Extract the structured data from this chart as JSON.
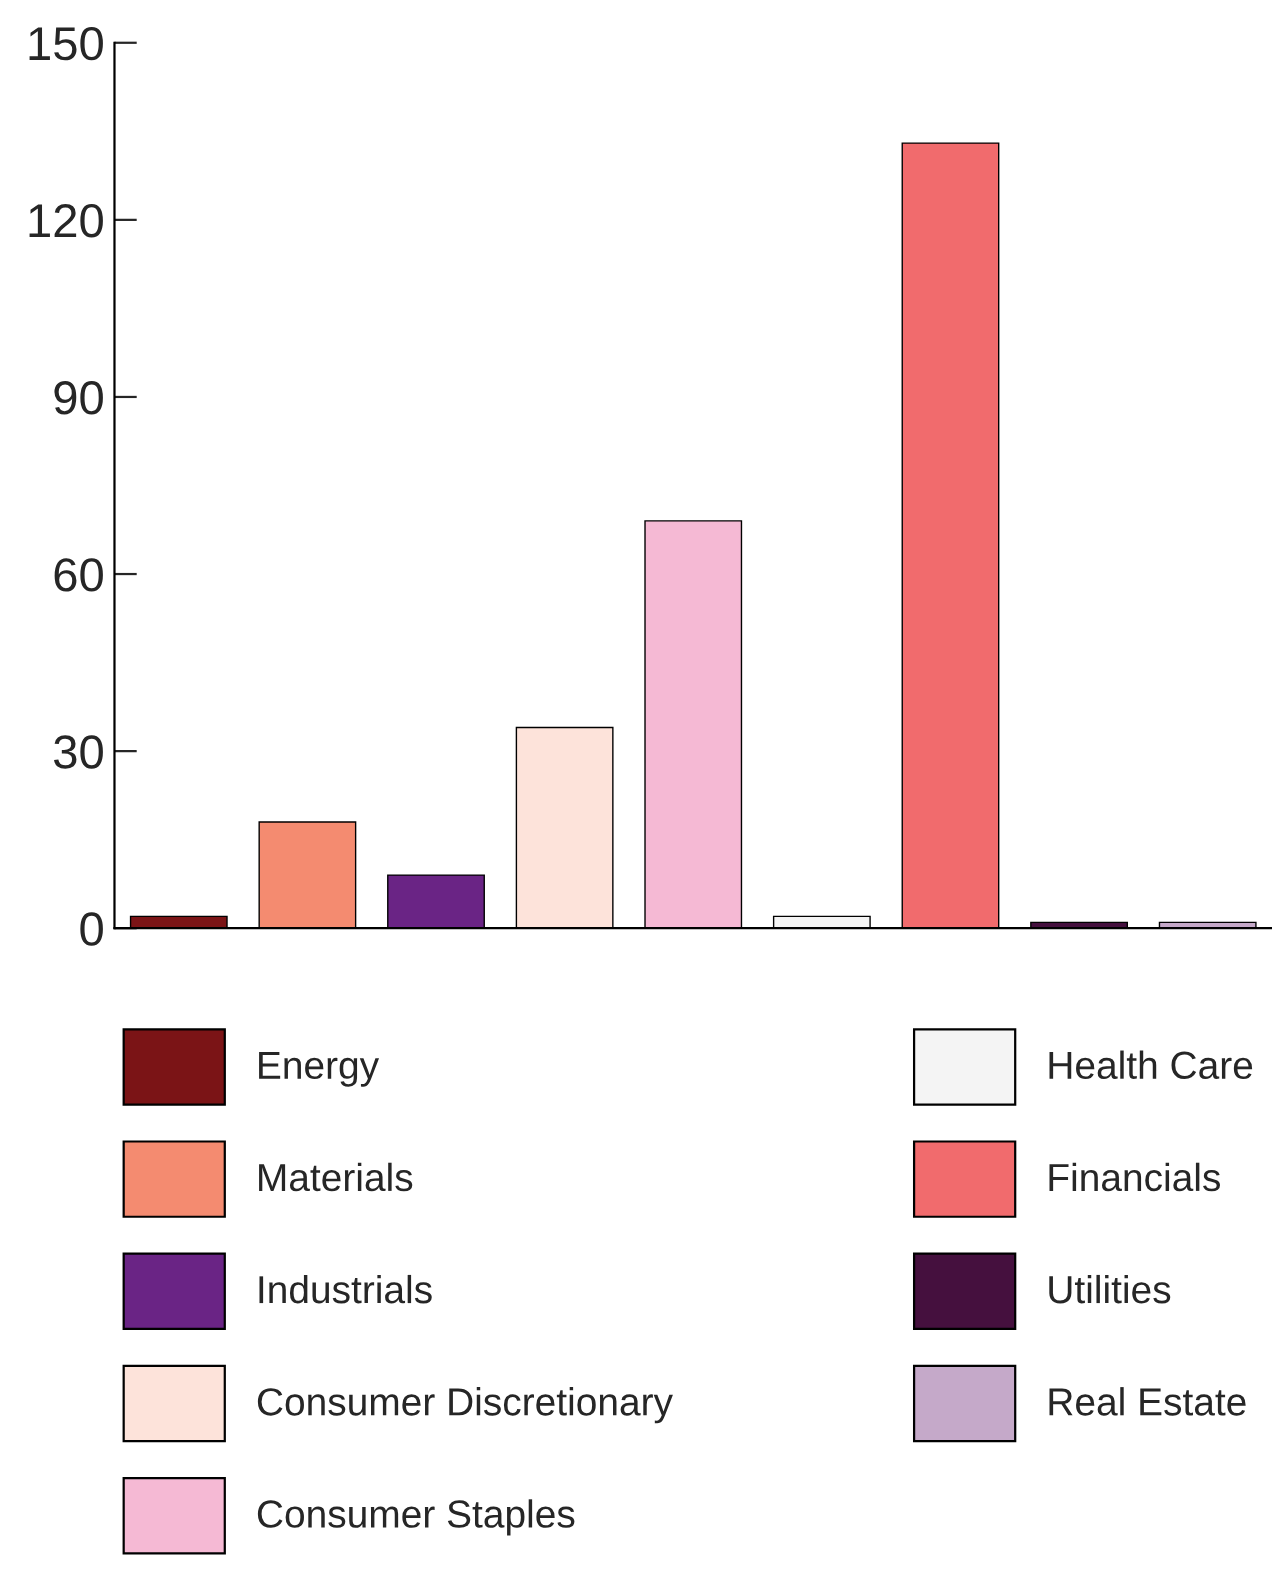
{
  "chart_data": {
    "type": "bar",
    "categories": [
      null,
      null,
      null,
      null,
      null,
      null,
      null,
      null,
      null
    ],
    "series": [
      {
        "name": "Energy",
        "color": "#7b1416",
        "values": [
          2,
          null,
          null,
          null,
          null,
          null,
          null,
          null,
          null
        ]
      },
      {
        "name": "Materials",
        "color": "#f48b70",
        "values": [
          null,
          18,
          null,
          null,
          null,
          null,
          null,
          null,
          null
        ]
      },
      {
        "name": "Industrials",
        "color": "#6a2485",
        "values": [
          null,
          null,
          9,
          null,
          null,
          null,
          null,
          null,
          null
        ]
      },
      {
        "name": "Consumer Discretionary",
        "color": "#fde3da",
        "values": [
          null,
          null,
          null,
          34,
          null,
          null,
          null,
          null,
          null
        ]
      },
      {
        "name": "Consumer Staples",
        "color": "#f5b9d4",
        "values": [
          null,
          null,
          null,
          null,
          69,
          null,
          null,
          null,
          null
        ]
      },
      {
        "name": "Health Care",
        "color": "#f4f4f4",
        "values": [
          null,
          null,
          null,
          null,
          null,
          2,
          null,
          null,
          null
        ]
      },
      {
        "name": "Financials",
        "color": "#f16b6d",
        "values": [
          null,
          null,
          null,
          null,
          null,
          null,
          133,
          null,
          null
        ]
      },
      {
        "name": "Utilities",
        "color": "#45103e",
        "values": [
          null,
          null,
          null,
          null,
          null,
          null,
          null,
          1,
          null
        ]
      },
      {
        "name": "Real Estate",
        "color": "#c5a9c9",
        "values": [
          null,
          null,
          null,
          null,
          null,
          null,
          null,
          null,
          1
        ]
      }
    ],
    "ylim": [
      0,
      150
    ],
    "yticks": [
      0,
      30,
      60,
      90,
      120,
      150
    ],
    "grid": false,
    "legend": "bottom",
    "tick_labels": "y"
  }
}
